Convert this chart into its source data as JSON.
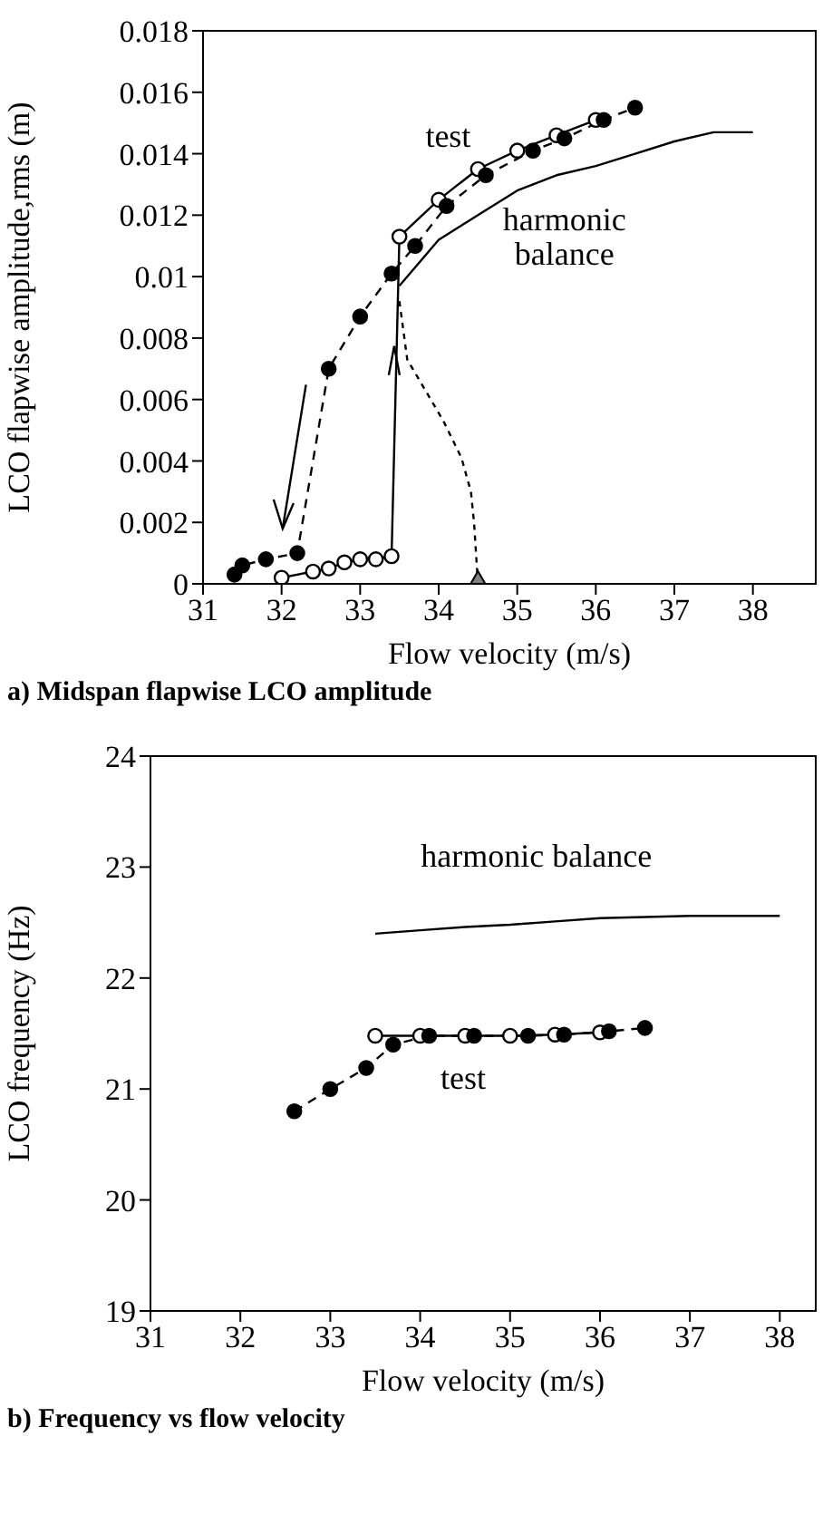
{
  "chart_data": [
    {
      "type": "line",
      "title": "a) Midspan flapwise LCO amplitude",
      "xlabel": "Flow velocity (m/s)",
      "ylabel": "LCO flapwise amplitude,rms (m)",
      "xlim": [
        31,
        38.8
      ],
      "ylim": [
        0,
        0.018
      ],
      "xticks": [
        31,
        32,
        33,
        34,
        35,
        36,
        37,
        38
      ],
      "yticks": [
        0,
        0.002,
        0.004,
        0.006,
        0.008,
        0.01,
        0.012,
        0.014,
        0.016,
        0.018
      ],
      "annotations": [
        "test",
        "harmonic\nbalance"
      ],
      "series": [
        {
          "color": "#000000",
          "marker": "circle-open",
          "line_style": "solid",
          "x": [
            32.0,
            32.4,
            32.6,
            32.8,
            33.0,
            33.2,
            33.4,
            33.5,
            34.0,
            34.5,
            35.0,
            35.5,
            36.0
          ],
          "values": [
            0.0002,
            0.0004,
            0.0005,
            0.0007,
            0.0008,
            0.0008,
            0.0009,
            0.0113,
            0.0125,
            0.0135,
            0.0141,
            0.0146,
            0.0151
          ]
        },
        {
          "color": "#000000",
          "marker": "circle",
          "line_style": "dashed",
          "x": [
            31.4,
            31.5,
            31.8,
            32.2,
            32.6,
            33.0,
            33.4,
            33.7,
            34.1,
            34.6,
            35.2,
            35.6,
            36.1,
            36.5
          ],
          "values": [
            0.0003,
            0.0006,
            0.0008,
            0.001,
            0.007,
            0.0087,
            0.0101,
            0.011,
            0.0123,
            0.0133,
            0.0141,
            0.0145,
            0.0151,
            0.0155
          ]
        },
        {
          "color": "#000000",
          "marker": "none",
          "line_style": "solid",
          "x": [
            33.5,
            34.0,
            34.5,
            35.0,
            35.5,
            36.0,
            36.5,
            37.0,
            37.5,
            38.0
          ],
          "values": [
            0.0097,
            0.0112,
            0.012,
            0.0128,
            0.0133,
            0.0136,
            0.014,
            0.0144,
            0.0147,
            0.0147
          ]
        },
        {
          "color": "#000000",
          "marker": "none",
          "line_style": "dotted",
          "x": [
            33.5,
            33.6,
            34.06,
            34.29,
            34.41,
            34.45,
            34.5
          ],
          "values": [
            0.0092,
            0.0073,
            0.0053,
            0.0041,
            0.003,
            0.002,
            0
          ]
        },
        {
          "type": "scatter",
          "color": "#808080",
          "marker": "triangle",
          "x": [
            34.5
          ],
          "values": [
            0
          ]
        }
      ]
    },
    {
      "type": "line",
      "title": "b) Frequency vs flow velocity",
      "xlabel": "Flow velocity (m/s)",
      "ylabel": "LCO frequency (Hz)",
      "xlim": [
        31,
        38.4
      ],
      "ylim": [
        19,
        24
      ],
      "xticks": [
        31,
        32,
        33,
        34,
        35,
        36,
        37,
        38
      ],
      "yticks": [
        19,
        20,
        21,
        22,
        23,
        24
      ],
      "annotations": [
        "harmonic balance",
        "test"
      ],
      "series": [
        {
          "color": "#000000",
          "marker": "none",
          "line_style": "solid",
          "x": [
            33.5,
            34.0,
            34.5,
            35.0,
            35.5,
            36.0,
            36.5,
            37.0,
            38.0
          ],
          "values": [
            22.4,
            22.43,
            22.46,
            22.48,
            22.51,
            22.54,
            22.55,
            22.56,
            22.56
          ]
        },
        {
          "color": "#000000",
          "marker": "circle-open",
          "line_style": "solid",
          "x": [
            33.5,
            34.0,
            34.5,
            35.0,
            35.5,
            36.0
          ],
          "values": [
            21.48,
            21.48,
            21.48,
            21.48,
            21.49,
            21.51
          ]
        },
        {
          "color": "#000000",
          "marker": "circle",
          "line_style": "dashed",
          "x": [
            32.6,
            33.0,
            33.4,
            33.7,
            34.1,
            34.6,
            35.2,
            35.6,
            36.1,
            36.5
          ],
          "values": [
            20.8,
            21.0,
            21.19,
            21.4,
            21.48,
            21.48,
            21.48,
            21.49,
            21.52,
            21.55
          ]
        }
      ]
    }
  ]
}
